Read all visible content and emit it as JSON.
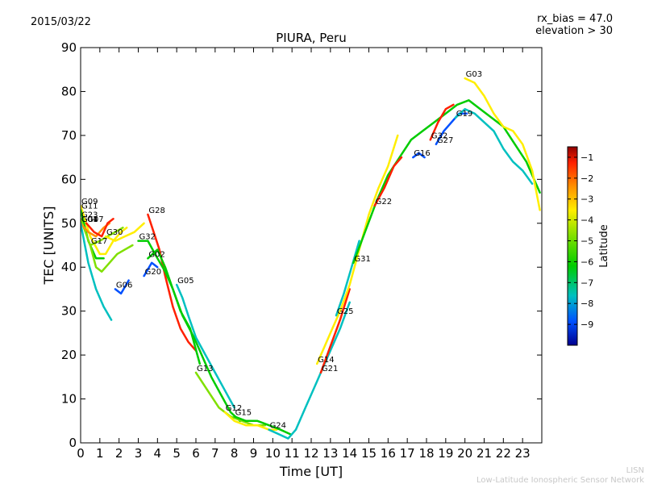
{
  "date_label": "2015/03/22",
  "bias_label": "rx_bias = 47.0",
  "elevation_label": "elevation > 30",
  "footer_short": "LISN",
  "footer_long": "Low-Latitude Ionospheric Sensor Network",
  "chart_data": {
    "type": "line",
    "title": "PIURA, Peru",
    "xlabel": "Time [UT]",
    "ylabel": "TEC [UNITS]",
    "xlim": [
      0,
      24
    ],
    "ylim": [
      0,
      90
    ],
    "xticks": [
      0,
      1,
      2,
      3,
      4,
      5,
      6,
      7,
      8,
      9,
      10,
      11,
      12,
      13,
      14,
      15,
      16,
      17,
      18,
      19,
      20,
      21,
      22,
      23
    ],
    "yticks": [
      0,
      10,
      20,
      30,
      40,
      50,
      60,
      70,
      80,
      90
    ],
    "colorbar": {
      "label": "Latitude",
      "range": [
        -10,
        -0.5
      ],
      "ticks": [
        -1,
        -2,
        -3,
        -4,
        -5,
        -6,
        -7,
        -8,
        -9
      ],
      "colors": [
        "#00008f",
        "#0050ff",
        "#00c0c0",
        "#00cc00",
        "#80e000",
        "#ffee00",
        "#ff9000",
        "#ff2000",
        "#8f0000"
      ]
    },
    "series": [
      {
        "name": "G09",
        "lat": -4.5,
        "x": [
          0.0,
          0.5,
          1.0,
          1.3,
          1.7,
          2.1,
          2.4
        ],
        "y": [
          54,
          47,
          43,
          43,
          46,
          48,
          49
        ]
      },
      {
        "name": "G11",
        "lat": -6.0,
        "x": [
          0.0,
          0.4,
          0.8,
          1.2
        ],
        "y": [
          53,
          46,
          42,
          42
        ]
      },
      {
        "name": "G23",
        "lat": -5.0,
        "x": [
          0.0,
          0.5,
          1.0,
          1.4,
          1.8,
          2.2
        ],
        "y": [
          51,
          45,
          46,
          47,
          48,
          49
        ]
      },
      {
        "name": "G04",
        "lat": -3.0,
        "x": [
          0.0,
          0.4,
          0.8,
          1.2,
          1.5
        ],
        "y": [
          50,
          48,
          47,
          49,
          50
        ]
      },
      {
        "name": "G01",
        "lat": -7.5,
        "x": [
          0.0,
          0.4,
          0.8,
          1.2,
          1.6
        ],
        "y": [
          50,
          41,
          35,
          31,
          28
        ]
      },
      {
        "name": "G07",
        "lat": -1.5,
        "x": [
          0.3,
          0.7,
          1.1,
          1.4,
          1.7
        ],
        "y": [
          50,
          48,
          47,
          50,
          51
        ]
      },
      {
        "name": "G17",
        "lat": -5.5,
        "x": [
          0.5,
          0.8,
          1.1,
          1.5,
          1.9,
          2.3,
          2.7
        ],
        "y": [
          45,
          40,
          39,
          41,
          43,
          44,
          45
        ]
      },
      {
        "name": "G30",
        "lat": -3.5,
        "x": [
          1.3,
          1.8,
          2.3,
          2.8,
          3.3
        ],
        "y": [
          47,
          46,
          47,
          48,
          50
        ]
      },
      {
        "name": "G06",
        "lat": -8.5,
        "x": [
          1.8,
          2.1,
          2.5
        ],
        "y": [
          35,
          34,
          37
        ]
      },
      {
        "name": "G28",
        "lat": -2.0,
        "x": [
          3.5,
          3.8,
          4.1,
          4.4,
          4.8,
          5.2,
          5.6,
          6.0
        ],
        "y": [
          52,
          48,
          44,
          38,
          31,
          26,
          23,
          21
        ]
      },
      {
        "name": "G32",
        "lat": -6.5,
        "x": [
          3.0,
          3.5,
          4.0,
          4.4,
          4.8,
          5.2,
          5.7,
          6.2
        ],
        "y": [
          46,
          46,
          42,
          39,
          35,
          30,
          26,
          18
        ]
      },
      {
        "name": "G20",
        "lat": -9.0,
        "x": [
          3.3,
          3.7,
          4.0
        ],
        "y": [
          38,
          41,
          40
        ]
      },
      {
        "name": "G02",
        "lat": -7.0,
        "x": [
          3.5,
          4.0,
          4.4,
          4.8,
          5.3,
          5.9,
          6.3,
          6.8,
          7.3,
          7.8,
          8.3
        ],
        "y": [
          42,
          44,
          40,
          35,
          29,
          24,
          20,
          15,
          11,
          7,
          5
        ]
      },
      {
        "name": "G05",
        "lat": -8.0,
        "x": [
          5.0,
          5.3,
          5.6,
          6.0,
          6.5,
          7.0,
          7.5,
          8.0
        ],
        "y": [
          36,
          33,
          29,
          24,
          20,
          16,
          12,
          8
        ]
      },
      {
        "name": "G13",
        "lat": -5.0,
        "x": [
          6.0,
          6.6,
          7.2,
          7.8,
          8.4,
          9.0,
          9.6
        ],
        "y": [
          16,
          12,
          8,
          6,
          5,
          4,
          4
        ]
      },
      {
        "name": "G12",
        "lat": -3.5,
        "x": [
          7.5,
          8.0,
          8.6,
          9.2,
          9.8,
          10.2
        ],
        "y": [
          7,
          5,
          4,
          4,
          3,
          3
        ]
      },
      {
        "name": "G15",
        "lat": -6.5,
        "x": [
          8.0,
          8.6,
          9.2,
          9.8,
          10.4,
          10.9
        ],
        "y": [
          6,
          5,
          5,
          4,
          3,
          2
        ]
      },
      {
        "name": "G24",
        "lat": -7.5,
        "x": [
          9.8,
          10.3,
          10.8,
          11.2,
          11.7,
          12.3,
          12.9,
          13.5,
          14.0
        ],
        "y": [
          3,
          2,
          1,
          3,
          8,
          14,
          20,
          26,
          32
        ]
      },
      {
        "name": "G21",
        "lat": -2.0,
        "x": [
          12.5,
          13.0,
          13.5,
          14.0
        ],
        "y": [
          16,
          22,
          28,
          35
        ]
      },
      {
        "name": "G14",
        "lat": -3.5,
        "x": [
          12.3,
          12.7,
          13.1,
          13.5,
          14.0,
          14.5,
          15.0,
          15.5,
          16.0,
          16.5
        ],
        "y": [
          18,
          22,
          26,
          30,
          36,
          44,
          52,
          58,
          63,
          70
        ]
      },
      {
        "name": "G25",
        "lat": -8.0,
        "x": [
          13.3,
          13.7,
          14.1,
          14.5
        ],
        "y": [
          29,
          34,
          40,
          46
        ]
      },
      {
        "name": "G31",
        "lat": -6.0,
        "x": [
          14.2,
          14.8,
          15.4,
          16.0,
          16.6,
          17.2,
          17.8,
          18.4,
          19.0,
          19.6,
          20.2,
          20.8,
          21.4,
          22.0,
          22.6,
          23.2,
          23.9
        ],
        "y": [
          41,
          48,
          55,
          61,
          65,
          69,
          71,
          73,
          75,
          77,
          78,
          76,
          74,
          72,
          68,
          64,
          57
        ]
      },
      {
        "name": "G22",
        "lat": -2.0,
        "x": [
          15.3,
          15.8,
          16.3,
          16.7
        ],
        "y": [
          54,
          58,
          63,
          65
        ]
      },
      {
        "name": "G16",
        "lat": -8.5,
        "x": [
          17.3,
          17.6,
          17.9
        ],
        "y": [
          65,
          66,
          65
        ]
      },
      {
        "name": "G32",
        "lat": -2.0,
        "x": [
          18.2,
          18.6,
          19.0,
          19.4
        ],
        "y": [
          69,
          73,
          76,
          77
        ]
      },
      {
        "name": "G27",
        "lat": -9.0,
        "x": [
          18.5,
          18.9,
          19.3,
          19.7,
          20.1
        ],
        "y": [
          68,
          71,
          73,
          75,
          75
        ]
      },
      {
        "name": "G19",
        "lat": -7.5,
        "x": [
          19.5,
          20.0,
          20.5,
          21.0,
          21.5,
          22.0,
          22.5,
          23.0,
          23.5
        ],
        "y": [
          74,
          76,
          75,
          73,
          71,
          67,
          64,
          62,
          59
        ]
      },
      {
        "name": "G03",
        "lat": -3.5,
        "x": [
          20.0,
          20.5,
          21.0,
          21.5,
          22.0,
          22.5,
          23.0,
          23.5,
          23.9
        ],
        "y": [
          83,
          82,
          79,
          75,
          72,
          71,
          68,
          62,
          53
        ]
      }
    ]
  }
}
